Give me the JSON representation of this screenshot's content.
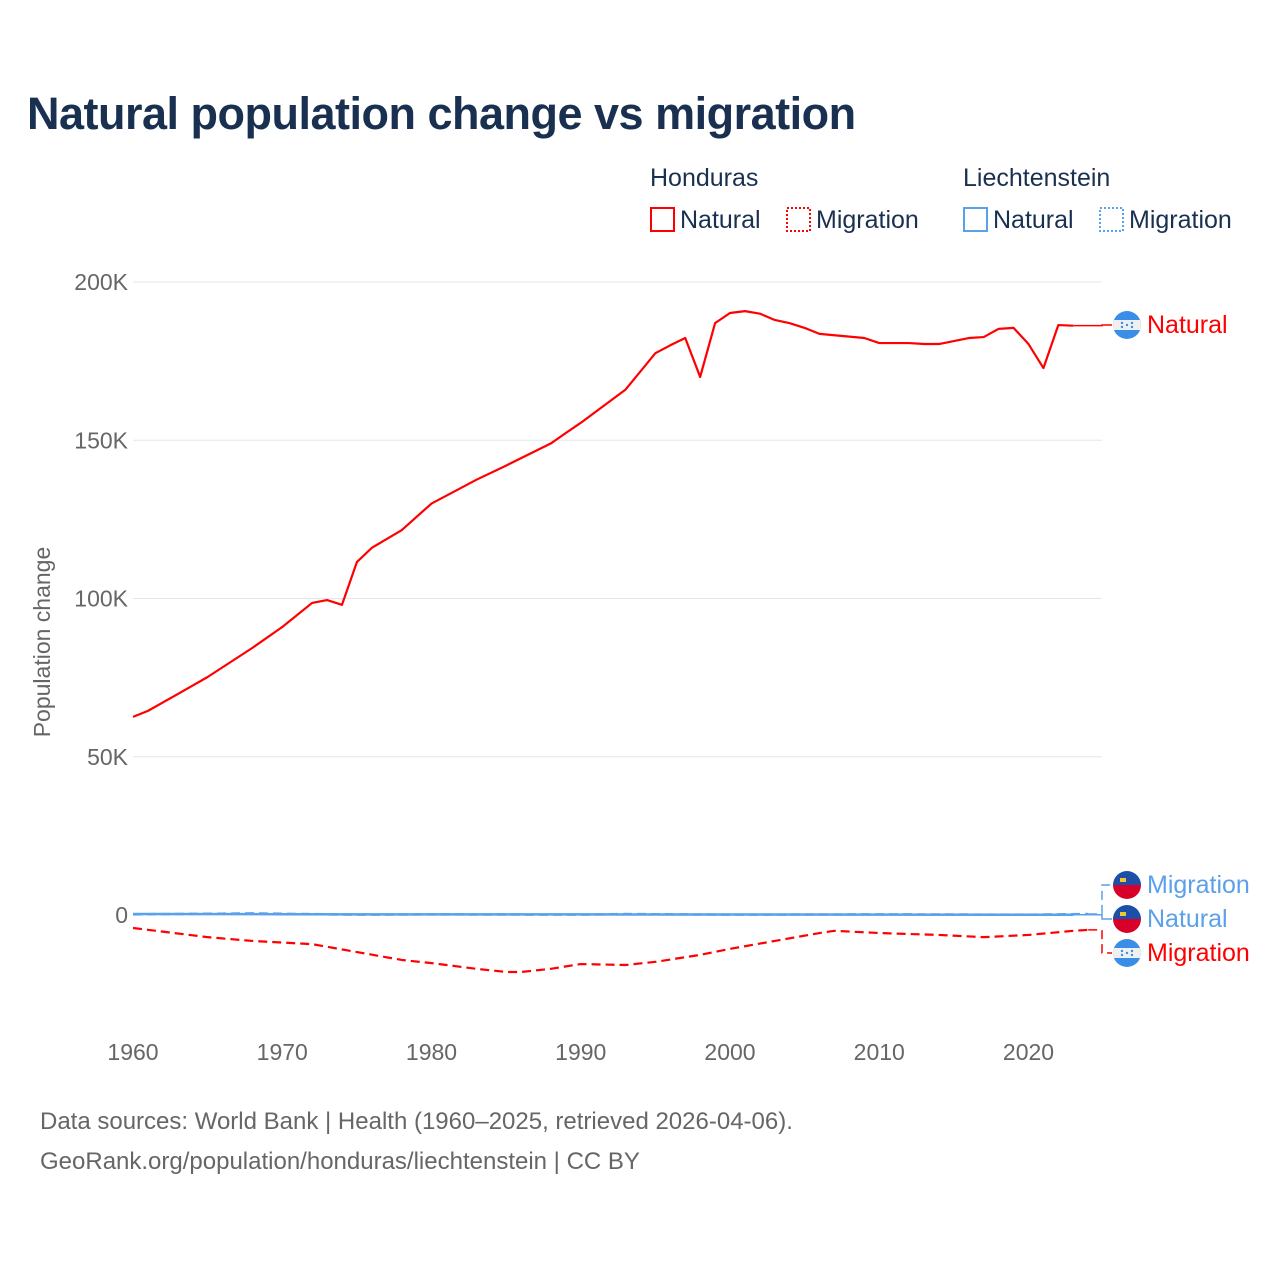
{
  "chart_data": {
    "type": "line",
    "title": "Natural population change vs migration",
    "xlabel": "",
    "ylabel": "Population change",
    "xlim": [
      1960,
      2025
    ],
    "ylim": [
      -35000,
      200000
    ],
    "x_ticks": [
      "1960",
      "1970",
      "1980",
      "1990",
      "2000",
      "2010",
      "2020"
    ],
    "y_ticks": [
      {
        "v": 200000,
        "label": "200K"
      },
      {
        "v": 150000,
        "label": "150K"
      },
      {
        "v": 100000,
        "label": "100K"
      },
      {
        "v": 50000,
        "label": "50K"
      },
      {
        "v": 0,
        "label": "0"
      }
    ],
    "grid": true,
    "legend": {
      "placement": "top-right",
      "groups": [
        {
          "name": "Honduras",
          "items": [
            {
              "label": "Natural",
              "style": "solid",
              "color": "#ff0000"
            },
            {
              "label": "Migration",
              "style": "dotted",
              "color": "#ff0000"
            }
          ]
        },
        {
          "name": "Liechtenstein",
          "items": [
            {
              "label": "Natural",
              "style": "solid",
              "color": "#5aa0ea"
            },
            {
              "label": "Migration",
              "style": "dotted",
              "color": "#5aa0ea"
            }
          ]
        }
      ]
    },
    "series": [
      {
        "name": "Honduras Natural",
        "label": "Natural",
        "color": "#ff0000",
        "dash": false,
        "flag": "honduras",
        "x": [
          1960,
          1961,
          1963,
          1965,
          1968,
          1970,
          1972,
          1973,
          1974,
          1975,
          1976,
          1978,
          1980,
          1983,
          1985,
          1988,
          1989,
          1990,
          1993,
          1995,
          1996,
          1997,
          1998,
          1999,
          2000,
          2001,
          2002,
          2003,
          2004,
          2005,
          2006,
          2009,
          2010,
          2012,
          2013,
          2014,
          2016,
          2017,
          2018,
          2019,
          2020,
          2021,
          2022,
          2023
        ],
        "y": [
          62600,
          64500,
          69800,
          75200,
          84400,
          91000,
          98600,
          99500,
          98000,
          111500,
          116000,
          121600,
          130000,
          137500,
          142000,
          149000,
          152300,
          155500,
          166000,
          177500,
          180000,
          182300,
          170000,
          187000,
          190200,
          190800,
          190000,
          188000,
          187000,
          185500,
          183600,
          182300,
          180700,
          180700,
          180400,
          180400,
          182300,
          182600,
          185200,
          185500,
          180400,
          172800,
          186400,
          186200
        ]
      },
      {
        "name": "Honduras Migration",
        "label": "Migration",
        "color": "#ff0000",
        "dash": true,
        "flag": "honduras",
        "x": [
          1960,
          1965,
          1968,
          1972,
          1975,
          1978,
          1980,
          1983,
          1985,
          1986,
          1988,
          1990,
          1993,
          1995,
          1998,
          2000,
          2003,
          2006,
          2007,
          2010,
          2014,
          2017,
          2020,
          2023,
          2024
        ],
        "y": [
          -4100,
          -7000,
          -8200,
          -9200,
          -11700,
          -14200,
          -15200,
          -17000,
          -18000,
          -18000,
          -17000,
          -15500,
          -15800,
          -14800,
          -12600,
          -10700,
          -8200,
          -5700,
          -5000,
          -5700,
          -6300,
          -7000,
          -6300,
          -5000,
          -4700
        ]
      },
      {
        "name": "Liechtenstein Natural",
        "label": "Natural",
        "color": "#5aa0ea",
        "dash": false,
        "flag": "liechtenstein",
        "x": [
          1960,
          1970,
          1980,
          1990,
          2000,
          2010,
          2020,
          2023
        ],
        "y": [
          300,
          250,
          200,
          180,
          150,
          120,
          80,
          60
        ]
      },
      {
        "name": "Liechtenstein Migration",
        "label": "Migration",
        "color": "#5aa0ea",
        "dash": true,
        "flag": "liechtenstein",
        "x": [
          1960,
          1968,
          1975,
          1980,
          1990,
          1993,
          2000,
          2010,
          2020,
          2024
        ],
        "y": [
          200,
          500,
          100,
          200,
          100,
          300,
          100,
          200,
          100,
          300
        ]
      }
    ]
  },
  "footer": {
    "line1": "Data sources: World Bank | Health (1960–2025, retrieved 2026-04-06).",
    "line2": "GeoRank.org/population/honduras/liechtenstein | CC BY"
  }
}
